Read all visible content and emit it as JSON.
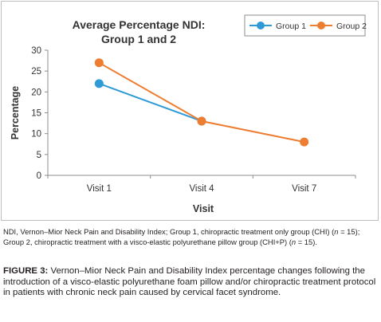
{
  "chart_data": {
    "type": "line",
    "title_lines": [
      "Average Percentage NDI:",
      "Group 1 and 2"
    ],
    "xlabel": "Visit",
    "ylabel": "Percentage",
    "categories": [
      "Visit 1",
      "Visit 4",
      "Visit 7"
    ],
    "ylim": [
      0,
      30
    ],
    "yticks": [
      0,
      5,
      10,
      15,
      20,
      25,
      30
    ],
    "grid": false,
    "legend_position": "top-right",
    "series": [
      {
        "name": "Group 1",
        "values": [
          22,
          13,
          null
        ],
        "color": "#2e9ad6"
      },
      {
        "name": "Group 2",
        "values": [
          27,
          13,
          8
        ],
        "color": "#ed7d31"
      }
    ]
  },
  "note": {
    "prefix": "NDI, Vernon–Mior Neck Pain and Disability Index; Group 1, chiropractic treatment only group (CHI) (",
    "n_italic": "n",
    "mid": " = 15); Group 2, chiropractic treatment with a visco-elastic polyurethane pillow group (CHI+P) (",
    "n_italic_2": "n",
    "suffix": " = 15)."
  },
  "caption": {
    "label": "FIGURE 3:",
    "text": " Vernon–Mior Neck Pain and Disability Index percentage changes following the introduction of a visco-elastic polyurethane foam pillow and/or chiropractic treatment protocol in patients with chronic neck pain caused by cervical facet syndrome."
  }
}
